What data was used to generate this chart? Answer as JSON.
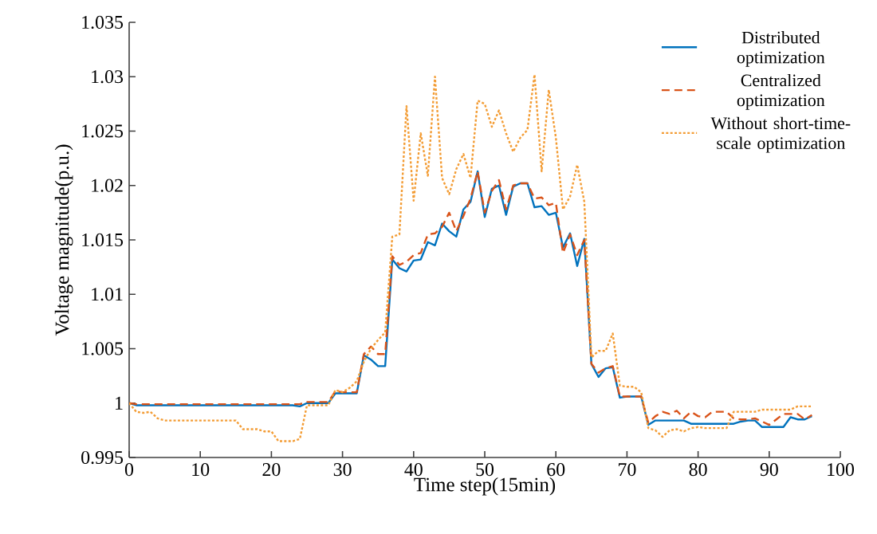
{
  "chart_data": {
    "type": "line",
    "xlabel": "Time step(15min)",
    "ylabel": "Voltage magnitude(p.u.)",
    "x": [
      0,
      1,
      2,
      3,
      4,
      5,
      6,
      7,
      8,
      9,
      10,
      11,
      12,
      13,
      14,
      15,
      16,
      17,
      18,
      19,
      20,
      21,
      22,
      23,
      24,
      25,
      26,
      27,
      28,
      29,
      30,
      31,
      32,
      33,
      34,
      35,
      36,
      37,
      38,
      39,
      40,
      41,
      42,
      43,
      44,
      45,
      46,
      47,
      48,
      49,
      50,
      51,
      52,
      53,
      54,
      55,
      56,
      57,
      58,
      59,
      60,
      61,
      62,
      63,
      64,
      65,
      66,
      67,
      68,
      69,
      70,
      71,
      72,
      73,
      74,
      75,
      76,
      77,
      78,
      79,
      80,
      81,
      82,
      83,
      84,
      85,
      86,
      87,
      88,
      89,
      90,
      91,
      92,
      93,
      94,
      95,
      96
    ],
    "series": [
      {
        "name": "Distributed optimization",
        "color": "#0072bd",
        "line_style": "solid",
        "values": [
          1.0,
          0.9998,
          0.9998,
          0.9998,
          0.9998,
          0.9998,
          0.9998,
          0.9998,
          0.9998,
          0.9998,
          0.9998,
          0.9998,
          0.9998,
          0.9998,
          0.9998,
          0.9998,
          0.9998,
          0.9998,
          0.9998,
          0.9998,
          0.9998,
          0.9998,
          0.9998,
          0.9998,
          0.9997,
          1.0,
          1.0,
          1.0,
          1.0,
          1.0009,
          1.0009,
          1.0009,
          1.0009,
          1.0044,
          1.004,
          1.0034,
          1.0034,
          1.0132,
          1.0124,
          1.0121,
          1.0131,
          1.0132,
          1.0148,
          1.0145,
          1.0165,
          1.0158,
          1.0153,
          1.0178,
          1.0185,
          1.0213,
          1.0171,
          1.0197,
          1.02,
          1.0173,
          1.0199,
          1.0202,
          1.0202,
          1.018,
          1.0181,
          1.0173,
          1.0175,
          1.0143,
          1.0156,
          1.0126,
          1.0151,
          1.0036,
          1.0024,
          1.0032,
          1.0033,
          1.0005,
          1.0006,
          1.0006,
          1.0006,
          0.998,
          0.9984,
          0.9984,
          0.9984,
          0.9984,
          0.9984,
          0.9981,
          0.9981,
          0.9981,
          0.9981,
          0.9981,
          0.9981,
          0.9981,
          0.9983,
          0.9984,
          0.9984,
          0.9978,
          0.9978,
          0.9978,
          0.9978,
          0.9987,
          0.9985,
          0.9985,
          0.9988
        ]
      },
      {
        "name": "Centralized optimization",
        "color": "#d95319",
        "line_style": "dashed",
        "values": [
          1.0,
          0.9999,
          0.9999,
          0.9999,
          0.9999,
          0.9999,
          0.9999,
          0.9999,
          0.9999,
          0.9999,
          0.9999,
          0.9999,
          0.9999,
          0.9999,
          0.9999,
          0.9999,
          0.9999,
          0.9999,
          0.9999,
          0.9999,
          0.9999,
          0.9999,
          0.9999,
          0.9999,
          0.9999,
          1.0001,
          1.0001,
          1.0001,
          1.0001,
          1.0011,
          1.001,
          1.001,
          1.001,
          1.0045,
          1.0052,
          1.0045,
          1.0045,
          1.0135,
          1.0127,
          1.013,
          1.0136,
          1.0138,
          1.0155,
          1.0156,
          1.0162,
          1.0175,
          1.0158,
          1.0172,
          1.0188,
          1.0213,
          1.0175,
          1.0195,
          1.0205,
          1.0178,
          1.02,
          1.0202,
          1.0202,
          1.0188,
          1.0189,
          1.0182,
          1.0184,
          1.0138,
          1.0155,
          1.0136,
          1.015,
          1.0036,
          1.0028,
          1.0032,
          1.0034,
          1.0006,
          1.0006,
          1.0006,
          1.0006,
          0.9982,
          0.9988,
          0.9992,
          0.999,
          0.9993,
          0.9986,
          0.9992,
          0.9988,
          0.9987,
          0.9992,
          0.9992,
          0.9992,
          0.9986,
          0.9985,
          0.9985,
          0.9986,
          0.9983,
          0.998,
          0.9985,
          0.999,
          0.999,
          0.999,
          0.9985,
          0.9989
        ]
      },
      {
        "name": "Without short-time-scale optimization",
        "color": "#f39c34",
        "line_style": "dotted",
        "values": [
          1.0,
          0.9992,
          0.9991,
          0.9992,
          0.9986,
          0.9984,
          0.9984,
          0.9984,
          0.9984,
          0.9984,
          0.9984,
          0.9984,
          0.9984,
          0.9984,
          0.9984,
          0.9984,
          0.9976,
          0.9976,
          0.9976,
          0.9974,
          0.9974,
          0.9965,
          0.9965,
          0.9965,
          0.9967,
          0.9998,
          0.9998,
          0.9998,
          0.9998,
          1.0012,
          1.001,
          1.0014,
          1.002,
          1.0038,
          1.005,
          1.0058,
          1.0065,
          1.0153,
          1.0155,
          1.0273,
          1.0186,
          1.0248,
          1.0209,
          1.03,
          1.0207,
          1.0192,
          1.0215,
          1.0229,
          1.0207,
          1.0278,
          1.0275,
          1.0254,
          1.0269,
          1.0248,
          1.0231,
          1.0244,
          1.0251,
          1.0302,
          1.0213,
          1.0288,
          1.0244,
          1.0178,
          1.019,
          1.0219,
          1.0185,
          1.0042,
          1.0048,
          1.0048,
          1.0064,
          1.0016,
          1.0015,
          1.0015,
          1.001,
          0.9977,
          0.9975,
          0.9969,
          0.9975,
          0.9976,
          0.9974,
          0.9977,
          0.9978,
          0.9977,
          0.9977,
          0.9977,
          0.9977,
          0.9992,
          0.9992,
          0.9992,
          0.9992,
          0.9994,
          0.9994,
          0.9994,
          0.9994,
          0.9994,
          0.9997,
          0.9997,
          0.9997
        ]
      }
    ],
    "xlim": [
      0,
      100
    ],
    "xticks": [
      0,
      10,
      20,
      30,
      40,
      50,
      60,
      70,
      80,
      90,
      100
    ],
    "ylim": [
      0.995,
      1.035
    ],
    "yticks": [
      0.995,
      1,
      1.005,
      1.01,
      1.015,
      1.02,
      1.025,
      1.03,
      1.035
    ],
    "grid": false,
    "legend": "top right"
  }
}
